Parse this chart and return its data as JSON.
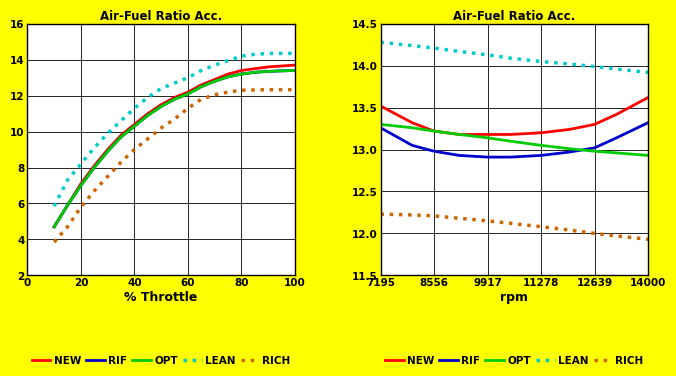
{
  "title": "Air-Fuel Ratio Acc.",
  "background_color": "#FFFF00",
  "plot_bg_color": "#FFFFFF",
  "left_chart": {
    "xlabel": "% Throttle",
    "xlim": [
      0,
      100
    ],
    "xticks": [
      0,
      20,
      40,
      60,
      80,
      100
    ],
    "ylim": [
      2,
      16
    ],
    "yticks": [
      2,
      4,
      6,
      8,
      10,
      12,
      14,
      16
    ],
    "NEW": {
      "x": [
        10,
        15,
        20,
        25,
        30,
        35,
        40,
        45,
        50,
        55,
        60,
        65,
        70,
        75,
        80,
        85,
        90,
        95,
        100
      ],
      "y": [
        4.7,
        5.9,
        7.1,
        8.1,
        9.0,
        9.8,
        10.4,
        11.0,
        11.5,
        11.9,
        12.2,
        12.6,
        12.9,
        13.2,
        13.4,
        13.5,
        13.6,
        13.65,
        13.7
      ]
    },
    "RIF": {
      "x": [
        10,
        15,
        20,
        25,
        30,
        35,
        40,
        45,
        50,
        55,
        60,
        65,
        70,
        75,
        80,
        85,
        90,
        95,
        100
      ],
      "y": [
        4.7,
        5.9,
        7.0,
        8.0,
        8.9,
        9.7,
        10.3,
        10.9,
        11.4,
        11.8,
        12.1,
        12.5,
        12.8,
        13.05,
        13.2,
        13.3,
        13.35,
        13.38,
        13.4
      ]
    },
    "OPT": {
      "x": [
        10,
        15,
        20,
        25,
        30,
        35,
        40,
        45,
        50,
        55,
        60,
        65,
        70,
        75,
        80,
        85,
        90,
        95,
        100
      ],
      "y": [
        4.7,
        5.9,
        7.0,
        8.0,
        8.9,
        9.7,
        10.3,
        10.9,
        11.4,
        11.8,
        12.1,
        12.5,
        12.8,
        13.05,
        13.2,
        13.3,
        13.35,
        13.38,
        13.4
      ]
    },
    "LEAN": {
      "x": [
        10,
        15,
        20,
        25,
        30,
        35,
        40,
        45,
        50,
        55,
        60,
        65,
        70,
        75,
        80,
        85,
        90,
        95,
        100
      ],
      "y": [
        5.85,
        7.3,
        8.2,
        9.1,
        9.9,
        10.6,
        11.3,
        11.9,
        12.4,
        12.7,
        13.0,
        13.4,
        13.7,
        13.95,
        14.2,
        14.3,
        14.35,
        14.35,
        14.35
      ]
    },
    "RICH": {
      "x": [
        10,
        15,
        20,
        25,
        30,
        35,
        40,
        45,
        50,
        55,
        60,
        65,
        70,
        75,
        80,
        85,
        90,
        95,
        100
      ],
      "y": [
        3.85,
        4.7,
        5.8,
        6.7,
        7.5,
        8.3,
        9.0,
        9.6,
        10.2,
        10.7,
        11.3,
        11.8,
        12.05,
        12.2,
        12.3,
        12.32,
        12.33,
        12.33,
        12.33
      ]
    }
  },
  "right_chart": {
    "xlabel": "rpm",
    "xlim": [
      7195,
      14000
    ],
    "xticks": [
      7195,
      8556,
      9917,
      11278,
      12639,
      14000
    ],
    "ylim": [
      11.5,
      14.5
    ],
    "yticks": [
      11.5,
      12.0,
      12.5,
      13.0,
      13.5,
      14.0,
      14.5
    ],
    "NEW": {
      "x": [
        7195,
        8000,
        8556,
        9200,
        9917,
        10500,
        11278,
        12000,
        12639,
        13200,
        14000
      ],
      "y": [
        13.52,
        13.32,
        13.22,
        13.18,
        13.18,
        13.18,
        13.2,
        13.24,
        13.3,
        13.42,
        13.62
      ]
    },
    "RIF": {
      "x": [
        7195,
        8000,
        8556,
        9200,
        9917,
        10500,
        11278,
        12000,
        12639,
        13200,
        14000
      ],
      "y": [
        13.26,
        13.05,
        12.98,
        12.93,
        12.91,
        12.91,
        12.93,
        12.97,
        13.02,
        13.14,
        13.32
      ]
    },
    "OPT": {
      "x": [
        7195,
        8000,
        8556,
        9200,
        9917,
        10500,
        11278,
        12000,
        12639,
        13200,
        14000
      ],
      "y": [
        13.3,
        13.26,
        13.22,
        13.18,
        13.14,
        13.1,
        13.05,
        13.01,
        12.98,
        12.96,
        12.93
      ]
    },
    "LEAN": {
      "x": [
        7195,
        8000,
        8556,
        9200,
        9917,
        10500,
        11278,
        12000,
        12639,
        13200,
        14000
      ],
      "y": [
        14.28,
        14.24,
        14.21,
        14.17,
        14.13,
        14.09,
        14.05,
        14.02,
        13.99,
        13.96,
        13.92
      ]
    },
    "RICH": {
      "x": [
        7195,
        8000,
        8556,
        9200,
        9917,
        10500,
        11278,
        12000,
        12639,
        13200,
        14000
      ],
      "y": [
        12.23,
        12.22,
        12.21,
        12.18,
        12.15,
        12.12,
        12.08,
        12.04,
        12.0,
        11.97,
        11.93
      ]
    }
  },
  "series": {
    "NEW": {
      "color": "#FF0000",
      "linestyle": "-",
      "linewidth": 2.0
    },
    "RIF": {
      "color": "#0000CC",
      "linestyle": "-",
      "linewidth": 2.0
    },
    "OPT": {
      "color": "#00CC00",
      "linestyle": "-",
      "linewidth": 2.0
    },
    "LEAN": {
      "color": "#00CCCC",
      "linestyle": ":",
      "linewidth": 2.5
    },
    "RICH": {
      "color": "#CC6600",
      "linestyle": ":",
      "linewidth": 2.5
    }
  },
  "legend_order": [
    "NEW",
    "RIF",
    "OPT",
    "LEAN",
    "RICH"
  ]
}
